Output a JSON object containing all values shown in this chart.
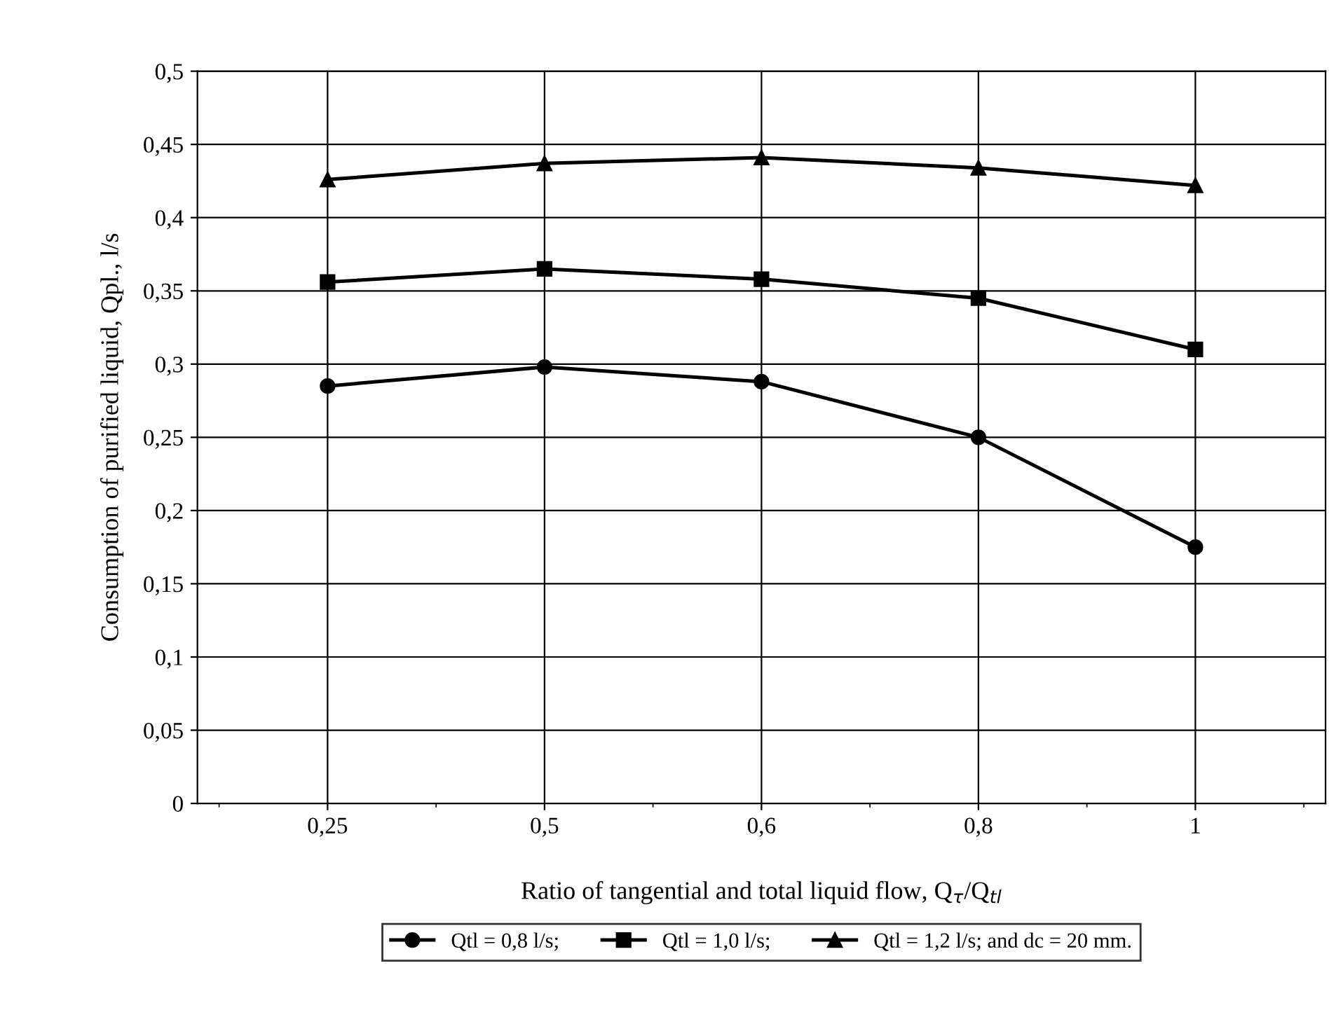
{
  "chart_data": {
    "type": "line",
    "xlabel": "Ratio of tangential and total liquid flow, Q$_{τ}$/Q$_{tl}$",
    "ylabel": "Consumption of purified liquid, Qpl., l/s",
    "categories": [
      "0,25",
      "0,5",
      "0,6",
      "0,8",
      "1"
    ],
    "series": [
      {
        "name": "Qtl = 0,8 l/s;",
        "color": "#000000",
        "marker": "circle",
        "values": [
          0.285,
          0.298,
          0.288,
          0.25,
          0.175
        ]
      },
      {
        "name": "Qtl = 1,0 l/s;",
        "color": "#000000",
        "marker": "square",
        "values": [
          0.356,
          0.365,
          0.358,
          0.345,
          0.31
        ]
      },
      {
        "name": "Qtl = 1,2 l/s; and dc = 20 mm.",
        "color": "#000000",
        "marker": "triangle",
        "values": [
          0.426,
          0.437,
          0.441,
          0.434,
          0.422
        ]
      }
    ],
    "ylim": [
      0,
      0.5
    ],
    "yticks": [
      0,
      {
        "value": 0.05,
        "label": "0,05"
      },
      {
        "value": 0.1,
        "label": "0,1"
      },
      {
        "value": 0.15,
        "label": "0,15"
      },
      {
        "value": 0.2,
        "label": "0,2"
      },
      {
        "value": 0.25,
        "label": "0,25"
      },
      {
        "value": 0.3,
        "label": "0,3"
      },
      {
        "value": 0.35,
        "label": "0,35"
      },
      {
        "value": 0.4,
        "label": "0,4"
      },
      {
        "value": 0.45,
        "label": "0,45"
      },
      {
        "value": 0.5,
        "label": "0,5"
      }
    ],
    "grid": true,
    "legend": "bottom",
    "line_style": "solid"
  }
}
